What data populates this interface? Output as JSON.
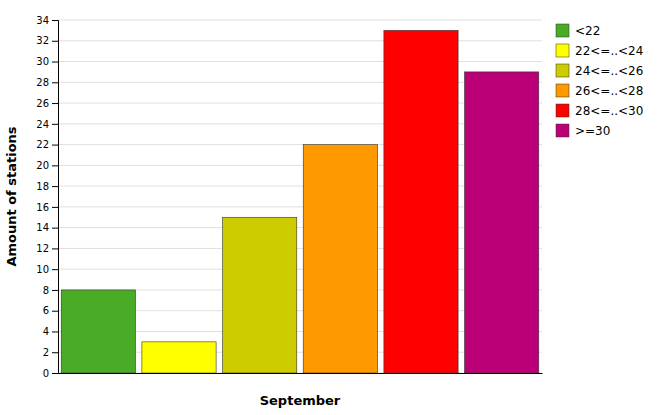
{
  "chart_data": {
    "type": "bar",
    "categories": [
      "<22",
      "22<=..<24",
      "24<=..<26",
      "26<=..<28",
      "28<=..<30",
      ">=30"
    ],
    "values": [
      8,
      3,
      15,
      22,
      33,
      29
    ],
    "colors": [
      "#4aab27",
      "#ffff00",
      "#cccc00",
      "#ff9900",
      "#ff0000",
      "#bb0077"
    ],
    "xlabel": "September",
    "ylabel": "Amount of stations",
    "ylim": [
      0,
      34
    ],
    "yticks": [
      0,
      2,
      4,
      6,
      8,
      10,
      12,
      14,
      16,
      18,
      20,
      22,
      24,
      26,
      28,
      30,
      32,
      34
    ],
    "grid": true,
    "legend": "right",
    "tick_labels": "y"
  }
}
